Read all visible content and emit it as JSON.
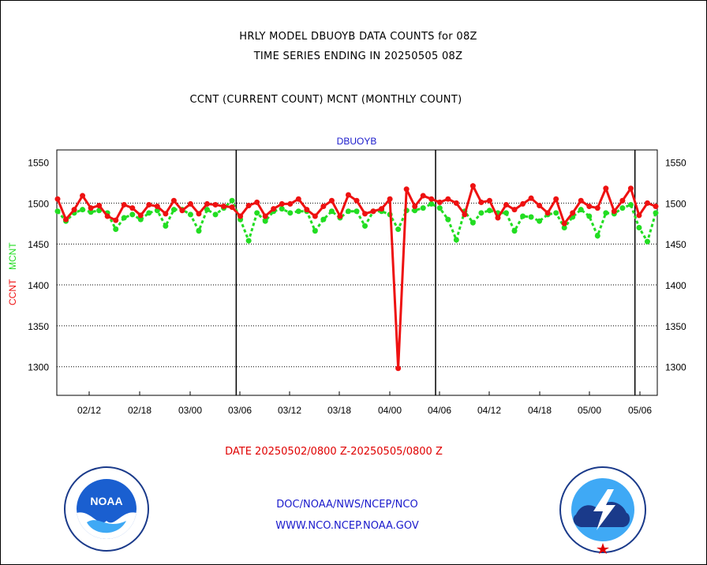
{
  "titles": {
    "line1": "HRLY MODEL DBUOYB DATA COUNTS for 08Z",
    "line2": "TIME SERIES ENDING IN 20250505 08Z",
    "line3": "CCNT (CURRENT COUNT) MCNT (MONTHLY COUNT)"
  },
  "footer": {
    "date": "DATE 20250502/0800 Z-20250505/0800 Z",
    "link1": "DOC/NOAA/NWS/NCEP/NCO",
    "link2": "WWW.NCO.NCEP.NOAA.GOV"
  },
  "logos": {
    "left": {
      "icon": "noaa-logo",
      "text": "NOAA"
    },
    "right": {
      "icon": "nws-logo"
    }
  },
  "colors": {
    "ccnt": "#ee1111",
    "mcnt": "#22dd22",
    "legend_title": "#1a1acc"
  },
  "chart_data": {
    "type": "line",
    "title": "DBUOYB",
    "ylabel_series": [
      "CCNT",
      "MCNT"
    ],
    "ylim": [
      1265,
      1565
    ],
    "yticks": [
      1300,
      1350,
      1400,
      1450,
      1500,
      1550
    ],
    "x_tick_labels": [
      "02/12",
      "02/18",
      "03/00",
      "03/06",
      "03/12",
      "03/18",
      "04/00",
      "04/06",
      "04/12",
      "04/18",
      "05/00",
      "05/06"
    ],
    "day_boundaries_after_index": [
      21,
      45,
      69
    ],
    "grid": "horizontal dotted",
    "series": [
      {
        "name": "CCNT",
        "values": [
          1505,
          1480,
          1492,
          1509,
          1494,
          1497,
          1484,
          1479,
          1498,
          1494,
          1485,
          1498,
          1496,
          1487,
          1503,
          1491,
          1499,
          1487,
          1499,
          1498,
          1496,
          1495,
          1484,
          1497,
          1501,
          1484,
          1493,
          1499,
          1499,
          1505,
          1492,
          1484,
          1496,
          1503,
          1484,
          1510,
          1503,
          1487,
          1490,
          1493,
          1505,
          1298,
          1517,
          1496,
          1509,
          1505,
          1501,
          1505,
          1500,
          1486,
          1521,
          1501,
          1503,
          1482,
          1498,
          1492,
          1499,
          1506,
          1497,
          1488,
          1505,
          1475,
          1488,
          1503,
          1496,
          1494,
          1518,
          1490,
          1503,
          1518,
          1485,
          1500,
          1496
        ]
      },
      {
        "name": "MCNT",
        "values": [
          1490,
          1478,
          1488,
          1492,
          1489,
          1491,
          1488,
          1468,
          1482,
          1486,
          1480,
          1488,
          1491,
          1472,
          1492,
          1492,
          1486,
          1466,
          1492,
          1486,
          1494,
          1503,
          1480,
          1454,
          1488,
          1478,
          1490,
          1493,
          1488,
          1490,
          1490,
          1466,
          1480,
          1490,
          1482,
          1490,
          1490,
          1472,
          1490,
          1490,
          1486,
          1468,
          1491,
          1491,
          1494,
          1499,
          1494,
          1480,
          1455,
          1490,
          1476,
          1488,
          1491,
          1488,
          1488,
          1466,
          1484,
          1483,
          1478,
          1486,
          1488,
          1470,
          1483,
          1492,
          1484,
          1460,
          1488,
          1487,
          1494,
          1498,
          1470,
          1453,
          1488
        ]
      }
    ]
  }
}
